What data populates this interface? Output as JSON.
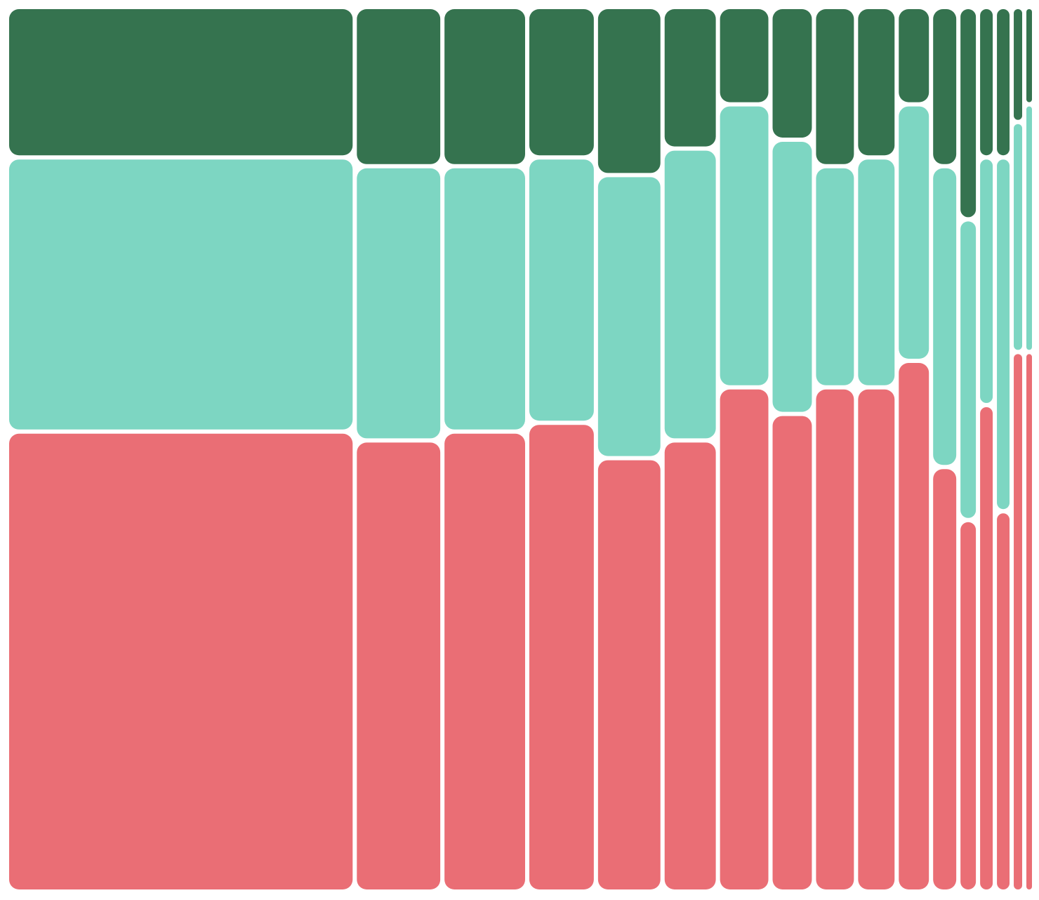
{
  "chart_data": {
    "type": "mosaic",
    "widths": [
      496,
      125,
      121,
      98,
      95,
      79,
      75,
      62,
      60,
      58,
      49,
      39,
      28,
      24,
      24,
      18,
      14
    ],
    "series": [
      {
        "color": "#35734f",
        "values": [
          17,
          18,
          18,
          17,
          19,
          16,
          11,
          15,
          18,
          17,
          11,
          18,
          24,
          17,
          17,
          13,
          11
        ]
      },
      {
        "color": "#7dd6c2",
        "values": [
          31,
          31,
          30,
          30,
          32,
          33,
          32,
          31,
          25,
          26,
          29,
          34,
          34,
          28,
          40,
          26,
          28
        ]
      },
      {
        "color": "#ea6e75",
        "values": [
          52,
          51,
          52,
          53,
          49,
          51,
          57,
          54,
          57,
          57,
          60,
          48,
          42,
          55,
          43,
          61,
          61
        ]
      }
    ]
  }
}
